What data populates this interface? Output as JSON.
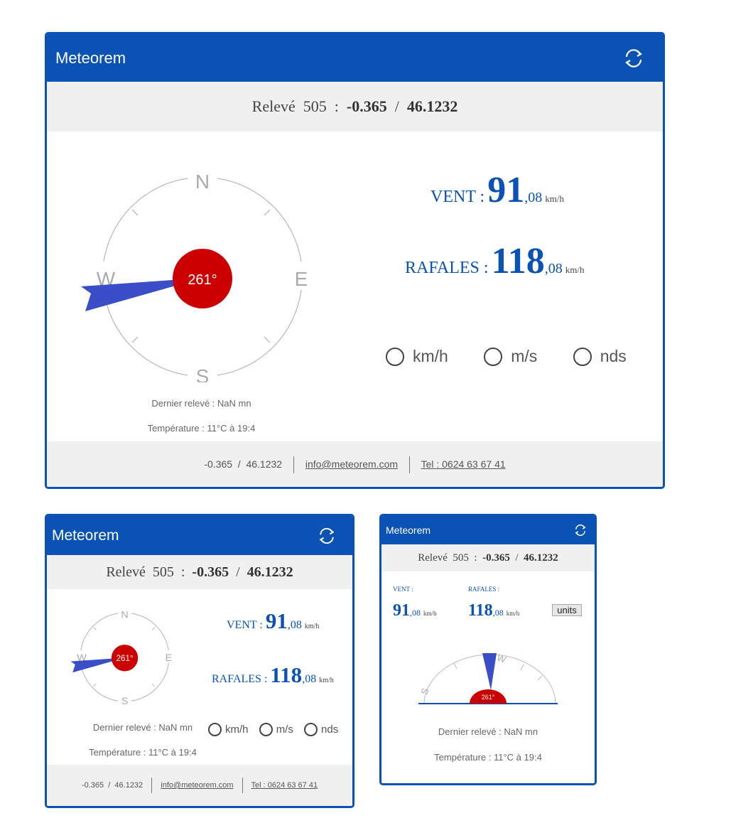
{
  "title": "Meteorem",
  "releve_prefix": "Relevé",
  "releve_id": "505",
  "colon": ":",
  "slash": "/",
  "lon": "-0.365",
  "lat": "46.1232",
  "compass": {
    "n": "N",
    "e": "E",
    "s": "S",
    "w": "W",
    "dir_deg": 261,
    "dir_label": "261°"
  },
  "vent_label": "VENT :",
  "vent_label_small": "VENT :",
  "vent_int": "91",
  "vent_dec": ",08",
  "rafales_label": "RAFALES :",
  "rafales_label_small": "RAFALES :",
  "rafales_int": "118",
  "rafales_dec": ",08",
  "unit": "km/h",
  "units": [
    {
      "label": "km/h",
      "selected": true
    },
    {
      "label": "m/s",
      "selected": false
    },
    {
      "label": "nds",
      "selected": false
    }
  ],
  "units_button": "units",
  "dernier": "Dernier relevé : NaN mn",
  "temperature": "Température : 11°C à 19:4",
  "footer": {
    "coords": "-0.365  /  46.1232",
    "email": "info@meteorem.com",
    "tel": "Tel : 0624 63 67 41"
  },
  "colors": {
    "brand": "#0a52b4",
    "needle": "#3a4fc7",
    "hub": "#cc0000"
  }
}
